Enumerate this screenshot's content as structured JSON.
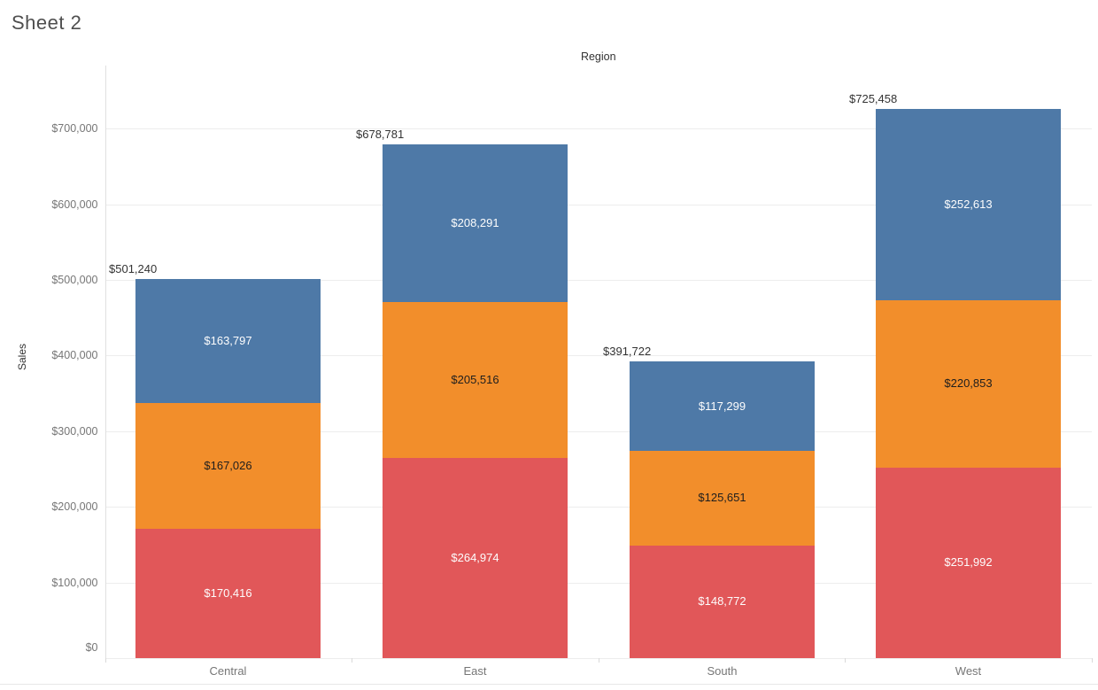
{
  "title": "Sheet 2",
  "chart_data": {
    "type": "bar",
    "stacked": true,
    "x_axis_title": "Region",
    "ylabel": "Sales",
    "grid": true,
    "legend": false,
    "categories": [
      "Central",
      "East",
      "South",
      "West"
    ],
    "series": [
      {
        "name": "segment-bottom-red",
        "color": "#e15759",
        "label_color": "#fdfdfd",
        "values": [
          170416,
          264974,
          148772,
          251992
        ],
        "labels": [
          "$170,416",
          "$264,974",
          "$148,772",
          "$251,992"
        ]
      },
      {
        "name": "segment-middle-orange",
        "color": "#f28e2b",
        "label_color": "#1e1e1e",
        "values": [
          167026,
          205516,
          125651,
          220853
        ],
        "labels": [
          "$167,026",
          "$205,516",
          "$125,651",
          "$220,853"
        ]
      },
      {
        "name": "segment-top-blue",
        "color": "#4e79a7",
        "label_color": "#fdfdfd",
        "values": [
          163797,
          208291,
          117299,
          252613
        ],
        "labels": [
          "$163,797",
          "$208,291",
          "$117,299",
          "$252,613"
        ]
      }
    ],
    "totals": [
      501240,
      678781,
      391722,
      725458
    ],
    "total_labels": [
      "$501,240",
      "$678,781",
      "$391,722",
      "$725,458"
    ],
    "y_ticks": [
      0,
      100000,
      200000,
      300000,
      400000,
      500000,
      600000,
      700000
    ],
    "y_tick_labels": [
      "$0",
      "$100,000",
      "$200,000",
      "$300,000",
      "$400,000",
      "$500,000",
      "$600,000",
      "$700,000"
    ],
    "ylim": [
      0,
      784000
    ]
  }
}
